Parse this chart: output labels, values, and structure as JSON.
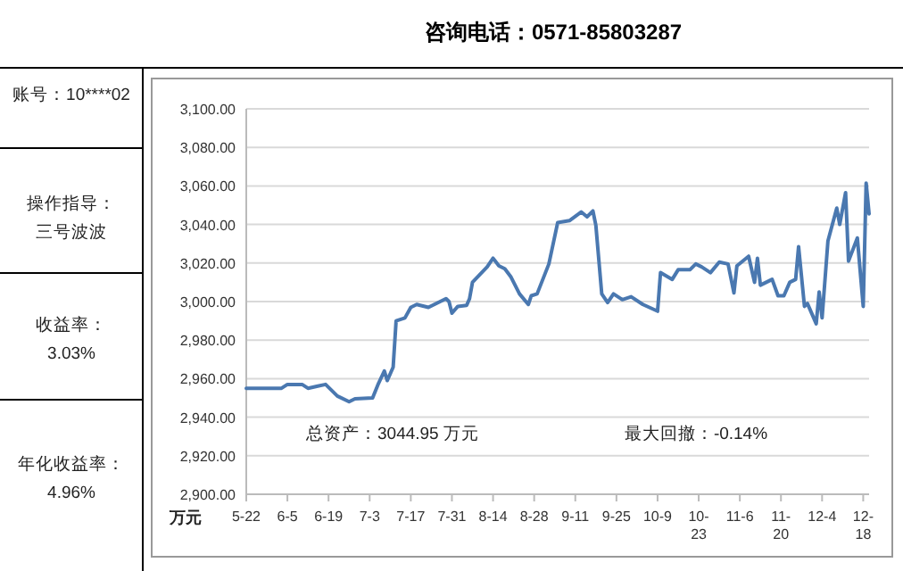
{
  "chart_data": {
    "type": "line",
    "title": "咨询电话：0571-85803287",
    "ylabel": "万元",
    "annotations": [
      "账号：10****02",
      "操作指导：",
      "三号波波",
      "收益率：",
      "3.03%",
      "年化收益率：",
      "4.96%",
      "总资产：3044.95 万元",
      "最大回撤：-0.14%"
    ],
    "x": [
      "--05-22",
      "--06-03",
      "--06-05",
      "--06-10",
      "--06-12",
      "--06-15",
      "--06-18",
      "--06-22",
      "--06-26",
      "--06-28",
      "--07-04",
      "--07-06",
      "--07-08",
      "--07-09",
      "--07-11",
      "--07-12",
      "--07-15",
      "--07-17",
      "--07-19",
      "--07-23",
      "--07-27",
      "--07-29",
      "--07-30",
      "--07-31",
      "--08-02",
      "--08-05",
      "--08-06",
      "--08-07",
      "--08-12",
      "--08-14",
      "--08-16",
      "--08-18",
      "--08-20",
      "--08-23",
      "--08-26",
      "--08-27",
      "--08-29",
      "--09-02",
      "--09-05",
      "--09-09",
      "--09-13",
      "--09-15",
      "--09-17",
      "--09-18",
      "--09-20",
      "--09-22",
      "--09-24",
      "--09-27",
      "--09-30",
      "--10-04",
      "--10-09",
      "--10-10",
      "--10-14",
      "--10-16",
      "--10-20",
      "--10-22",
      "--10-24",
      "--10-27",
      "--10-30",
      "--11-02",
      "--11-04",
      "--11-05",
      "--11-09",
      "--11-11",
      "--11-12",
      "--11-13",
      "--11-17",
      "--11-19",
      "--11-21",
      "--11-23",
      "--11-25",
      "--11-26",
      "--11-28",
      "--11-29",
      "--12-02",
      "--12-03",
      "--12-04",
      "--12-06",
      "--12-09",
      "--12-10",
      "--12-12",
      "--12-13",
      "--12-16",
      "--12-18",
      "--12-19",
      "--12-20"
    ],
    "series": [
      {
        "color": "#4a78b0",
        "values": [
          2955,
          2955,
          2957,
          2957,
          2955,
          2956,
          2957,
          2951,
          2948,
          2949.5,
          2950,
          2957.5,
          2964,
          2959,
          2966,
          2990,
          2991.5,
          2997,
          2998.5,
          2997,
          3000,
          3001.5,
          3000,
          2994,
          2997.5,
          2998,
          3001.5,
          3010,
          3018,
          3022.5,
          3018.5,
          3017,
          3013,
          3004,
          2998.5,
          3003,
          3004,
          3019.5,
          3041,
          3042,
          3046.5,
          3044,
          3047,
          3039.5,
          3004,
          2999.5,
          3004,
          3001,
          3002.5,
          2998.5,
          2995,
          3015,
          3011.5,
          3016.5,
          3016.5,
          3019.5,
          3018,
          3015,
          3020.5,
          3019.5,
          3004.5,
          3018.5,
          3023.5,
          3010,
          3022.5,
          3008.5,
          3011.5,
          3003,
          3003,
          3010,
          3011.5,
          3028.5,
          2997.5,
          2999,
          2988.5,
          3005,
          2991.5,
          3031.5,
          3048.5,
          3040,
          3056.5,
          3021,
          3033,
          2997.5,
          3061.5,
          3045.5
        ]
      }
    ],
    "xlim": [
      "--05-22",
      "--12-20"
    ],
    "xticks": [
      {
        "value": "--05-22",
        "label": "5-22"
      },
      {
        "value": "--06-05",
        "label": "6-5"
      },
      {
        "value": "--06-19",
        "label": "6-19"
      },
      {
        "value": "--07-03",
        "label": "7-3"
      },
      {
        "value": "--07-17",
        "label": "7-17"
      },
      {
        "value": "--07-31",
        "label": "7-31"
      },
      {
        "value": "--08-14",
        "label": "8-14"
      },
      {
        "value": "--08-28",
        "label": "8-28"
      },
      {
        "value": "--09-11",
        "label": "9-11"
      },
      {
        "value": "--09-25",
        "label": "9-25"
      },
      {
        "value": "--10-09",
        "label": "10-9"
      },
      {
        "value": "--10-23",
        "label": "10-23"
      },
      {
        "value": "--11-06",
        "label": "11-6"
      },
      {
        "value": "--11-20",
        "label": "11-20"
      },
      {
        "value": "--12-04",
        "label": "12-4"
      },
      {
        "value": "--12-18",
        "label": "12-18"
      }
    ],
    "ylim": [
      2900,
      3100
    ],
    "yticks": [
      {
        "value": 2900,
        "label": "2,900.00"
      },
      {
        "value": 2920,
        "label": "2,920.00"
      },
      {
        "value": 2940,
        "label": "2,940.00"
      },
      {
        "value": 2960,
        "label": "2,960.00"
      },
      {
        "value": 2980,
        "label": "2,980.00"
      },
      {
        "value": 3000,
        "label": "3,000.00"
      },
      {
        "value": 3020,
        "label": "3,020.00"
      },
      {
        "value": 3040,
        "label": "3,040.00"
      },
      {
        "value": 3060,
        "label": "3,060.00"
      },
      {
        "value": 3080,
        "label": "3,080.00"
      },
      {
        "value": 3100,
        "label": "3,100.00"
      }
    ],
    "grid": "y"
  }
}
